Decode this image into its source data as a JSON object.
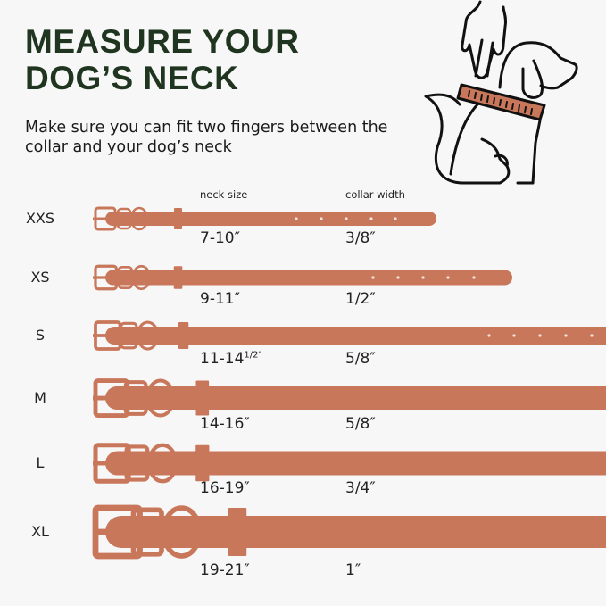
{
  "title": "MEASURE YOUR DOG’S NECK",
  "subtitle": "Make sure you can fit two fingers between the collar and your dog’s neck",
  "headers": {
    "neck_size": "neck size",
    "collar_width": "collar width"
  },
  "colors": {
    "collar": "#c8775b",
    "title": "#1f3520",
    "background": "#f7f7f7"
  },
  "illustration": "hand-measuring-dog-neck-icon",
  "rows": [
    {
      "size": "XXS",
      "neck": "7-10″",
      "neck_sup": "",
      "width": "3/8″"
    },
    {
      "size": "XS",
      "neck": "9-11″",
      "neck_sup": "",
      "width": "1/2″"
    },
    {
      "size": "S",
      "neck": "11-14",
      "neck_sup": "1/2″",
      "width": "5/8″"
    },
    {
      "size": "M",
      "neck": "14-16″",
      "neck_sup": "",
      "width": "5/8″"
    },
    {
      "size": "L",
      "neck": "16-19″",
      "neck_sup": "",
      "width": "3/4″"
    },
    {
      "size": "XL",
      "neck": "19-21″",
      "neck_sup": "",
      "width": "1″"
    }
  ]
}
